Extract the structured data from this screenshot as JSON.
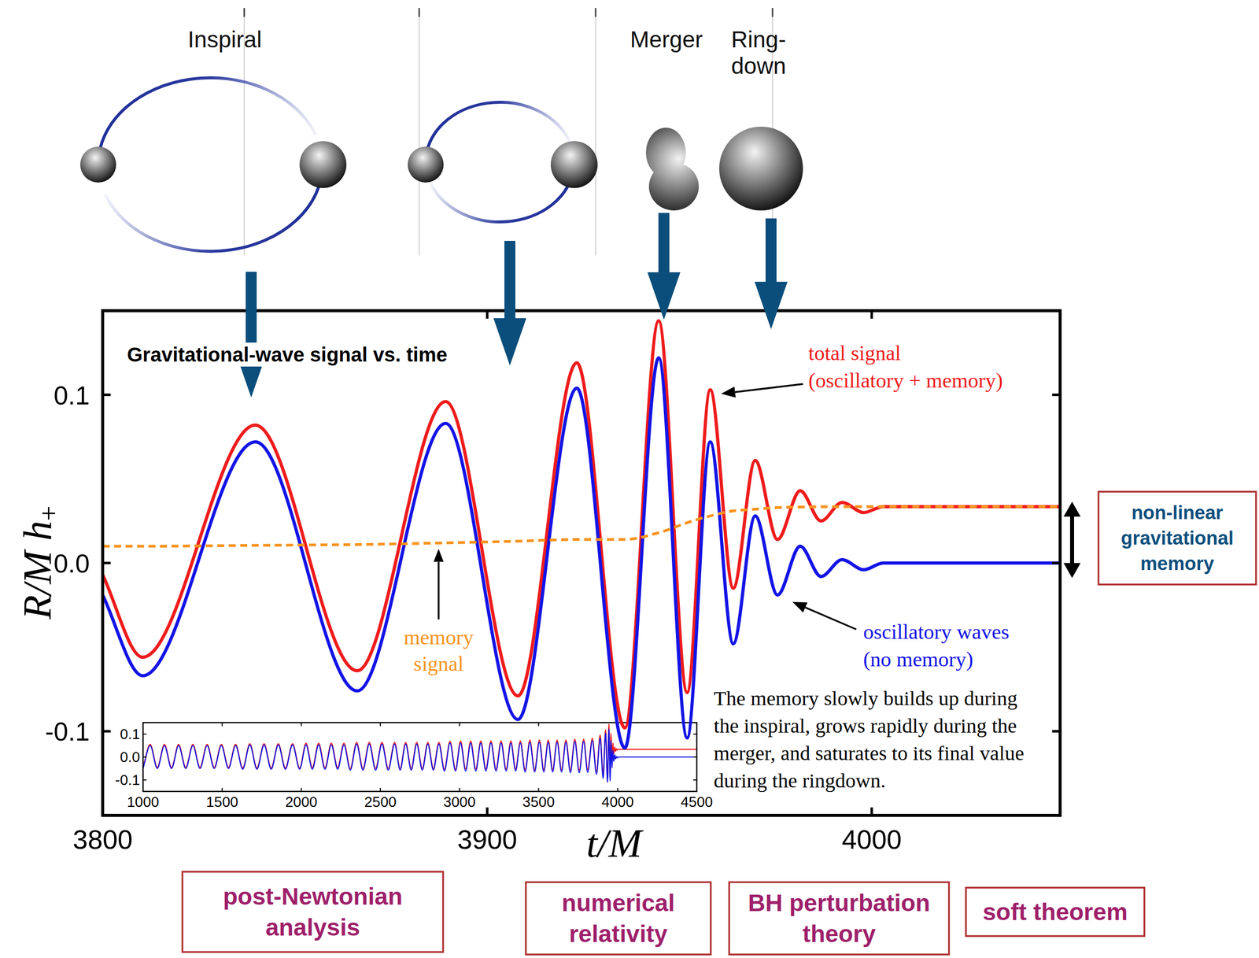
{
  "chart_data": [
    {
      "type": "line",
      "title": "Gravitational-wave signal vs. time",
      "x_label": "t/M",
      "y_label": "R/M h+",
      "xlim": [
        3800,
        4049
      ],
      "ylim": [
        -0.15,
        0.15
      ],
      "xticks": [
        3800,
        3900,
        4000
      ],
      "yticks": [
        -0.1,
        {
          "value": 0,
          "label": "0.0"
        },
        0.1
      ],
      "x": [
        3800,
        3810.4,
        3839.7,
        3866.2,
        3889.2,
        3908,
        3923.3,
        3935.8,
        3944.6,
        3952,
        3958,
        3964,
        3969.7,
        3975.5,
        3981.4,
        3986.8,
        3992.3,
        3997.9,
        4003,
        4049
      ],
      "series": [
        {
          "name": "total signal (oscillatory + memory)",
          "color": "#ee1c1c",
          "line_style": "solid",
          "values": [
            -0.007,
            -0.056,
            0.082,
            -0.064,
            0.096,
            -0.079,
            0.119,
            -0.098,
            0.144,
            -0.077,
            0.103,
            -0.015,
            0.061,
            0.014,
            0.043,
            0.025,
            0.036,
            0.03,
            0.0335,
            0.0335
          ]
        },
        {
          "name": "oscillatory waves (no memory)",
          "color": "#1414e6",
          "line_style": "solid",
          "values": [
            -0.019,
            -0.067,
            0.072,
            -0.076,
            0.083,
            -0.093,
            0.104,
            -0.11,
            0.122,
            -0.104,
            0.072,
            -0.048,
            0.028,
            -0.019,
            0.01,
            -0.008,
            0.002,
            -0.004,
            0,
            0
          ]
        },
        {
          "name": "memory signal",
          "color": "#f7931e",
          "line_style": "dashed",
          "values": [
            0.01,
            0.01,
            0.0105,
            0.011,
            0.012,
            0.013,
            0.014,
            0.014,
            0.018,
            0.024,
            0.028,
            0.031,
            0.032,
            0.033,
            0.0333,
            0.0335,
            0.0335,
            0.0335,
            0.0335,
            0.0335
          ]
        }
      ],
      "caption": [
        "The memory slowly builds up during",
        "the inspiral, grows rapidly during the",
        "merger, and saturates to its final value",
        "during the ringdown."
      ],
      "bracket_label": [
        "non-linear",
        "gravitational",
        "memory"
      ],
      "stage_labels": [
        [
          "Inspiral"
        ],
        [
          "Merger"
        ],
        [
          "Ring-",
          "down"
        ]
      ],
      "method_labels": [
        [
          "post-Newtonian",
          "analysis"
        ],
        [
          "numerical",
          "relativity"
        ],
        [
          "BH perturbation",
          "theory"
        ],
        [
          "soft theorem"
        ]
      ]
    },
    {
      "type": "line",
      "xlim": [
        1000,
        4500
      ],
      "ylim": [
        -0.15,
        0.15
      ],
      "xticks": [
        1000,
        1500,
        2000,
        2500,
        3000,
        3500,
        4000,
        4500
      ],
      "yticks": [
        -0.1,
        {
          "value": 0,
          "label": "0.0"
        },
        0.1
      ],
      "x": [
        1000,
        1045,
        1090,
        1135,
        1180,
        1225,
        1270,
        1315,
        1360,
        1405,
        1450,
        1495,
        1540,
        1585,
        1630,
        1675,
        1720,
        1765,
        1810,
        1855,
        1900,
        1945,
        1990,
        2030,
        2070,
        2110,
        2150,
        2190,
        2230,
        2270,
        2310,
        2350,
        2390,
        2430,
        2470,
        2510,
        2550,
        2590,
        2625,
        2660,
        2695,
        2730,
        2765,
        2800,
        2835,
        2870,
        2905,
        2940,
        2975,
        3007,
        3039,
        3071,
        3103,
        3135,
        3167,
        3199,
        3231,
        3263,
        3295,
        3325,
        3355,
        3385,
        3415,
        3445,
        3475,
        3505,
        3533,
        3561,
        3589,
        3617,
        3645,
        3673,
        3701,
        3729,
        3757,
        3785,
        3810.4,
        3839.7,
        3866.2,
        3889.2,
        3908,
        3923.3,
        3935.8,
        3944.6,
        3952,
        3958,
        3964,
        3969.7,
        3975.5,
        3981.4,
        3986.8,
        3992.3,
        3997.9,
        4003,
        4500
      ],
      "series": [
        {
          "color": "#ee1c1c",
          "line_style": "solid",
          "values": [
            -0.045,
            0.055,
            -0.045,
            0.055,
            -0.045,
            0.055,
            -0.045,
            0.055,
            -0.045,
            0.055,
            -0.045,
            0.055,
            -0.045,
            0.055,
            -0.048,
            0.058,
            -0.048,
            0.058,
            -0.048,
            0.058,
            -0.048,
            0.058,
            -0.048,
            0.06,
            -0.046,
            0.06,
            -0.046,
            0.06,
            -0.046,
            0.06,
            -0.05,
            0.064,
            -0.05,
            0.064,
            -0.05,
            0.064,
            -0.05,
            0.064,
            -0.05,
            0.064,
            -0.05,
            0.064,
            -0.05,
            0.064,
            -0.05,
            0.064,
            -0.054,
            0.068,
            -0.054,
            0.07,
            -0.052,
            0.07,
            -0.052,
            0.07,
            -0.052,
            0.07,
            -0.052,
            0.07,
            -0.052,
            0.07,
            -0.052,
            0.07,
            -0.056,
            0.074,
            -0.056,
            0.074,
            -0.056,
            0.074,
            -0.056,
            0.074,
            -0.056,
            0.074,
            -0.058,
            0.078,
            -0.058,
            0.078,
            -0.056,
            0.082,
            -0.064,
            0.096,
            -0.079,
            0.119,
            -0.098,
            0.144,
            -0.077,
            0.103,
            -0.015,
            0.061,
            0.014,
            0.043,
            0.025,
            0.036,
            0.03,
            0.0335,
            0.0335
          ]
        },
        {
          "color": "#1414e6",
          "line_style": "solid",
          "values": [
            -0.05,
            0.05,
            -0.05,
            0.05,
            -0.05,
            0.05,
            -0.05,
            0.05,
            -0.05,
            0.05,
            -0.05,
            0.05,
            -0.05,
            0.05,
            -0.053,
            0.053,
            -0.053,
            0.053,
            -0.053,
            0.053,
            -0.053,
            0.053,
            -0.053,
            0.053,
            -0.053,
            0.053,
            -0.053,
            0.053,
            -0.053,
            0.053,
            -0.057,
            0.057,
            -0.057,
            0.057,
            -0.057,
            0.057,
            -0.057,
            0.057,
            -0.057,
            0.057,
            -0.057,
            0.057,
            -0.057,
            0.057,
            -0.057,
            0.057,
            -0.061,
            0.061,
            -0.061,
            0.061,
            -0.061,
            0.061,
            -0.061,
            0.061,
            -0.061,
            0.061,
            -0.061,
            0.061,
            -0.061,
            0.061,
            -0.061,
            0.061,
            -0.065,
            0.065,
            -0.065,
            0.065,
            -0.065,
            0.065,
            -0.065,
            0.065,
            -0.065,
            0.065,
            -0.068,
            0.068,
            -0.068,
            0.068,
            -0.067,
            0.072,
            -0.076,
            0.083,
            -0.093,
            0.104,
            -0.11,
            0.122,
            -0.104,
            0.072,
            -0.048,
            0.028,
            -0.019,
            0.01,
            -0.008,
            0.002,
            -0.004,
            0,
            0
          ]
        }
      ]
    }
  ]
}
